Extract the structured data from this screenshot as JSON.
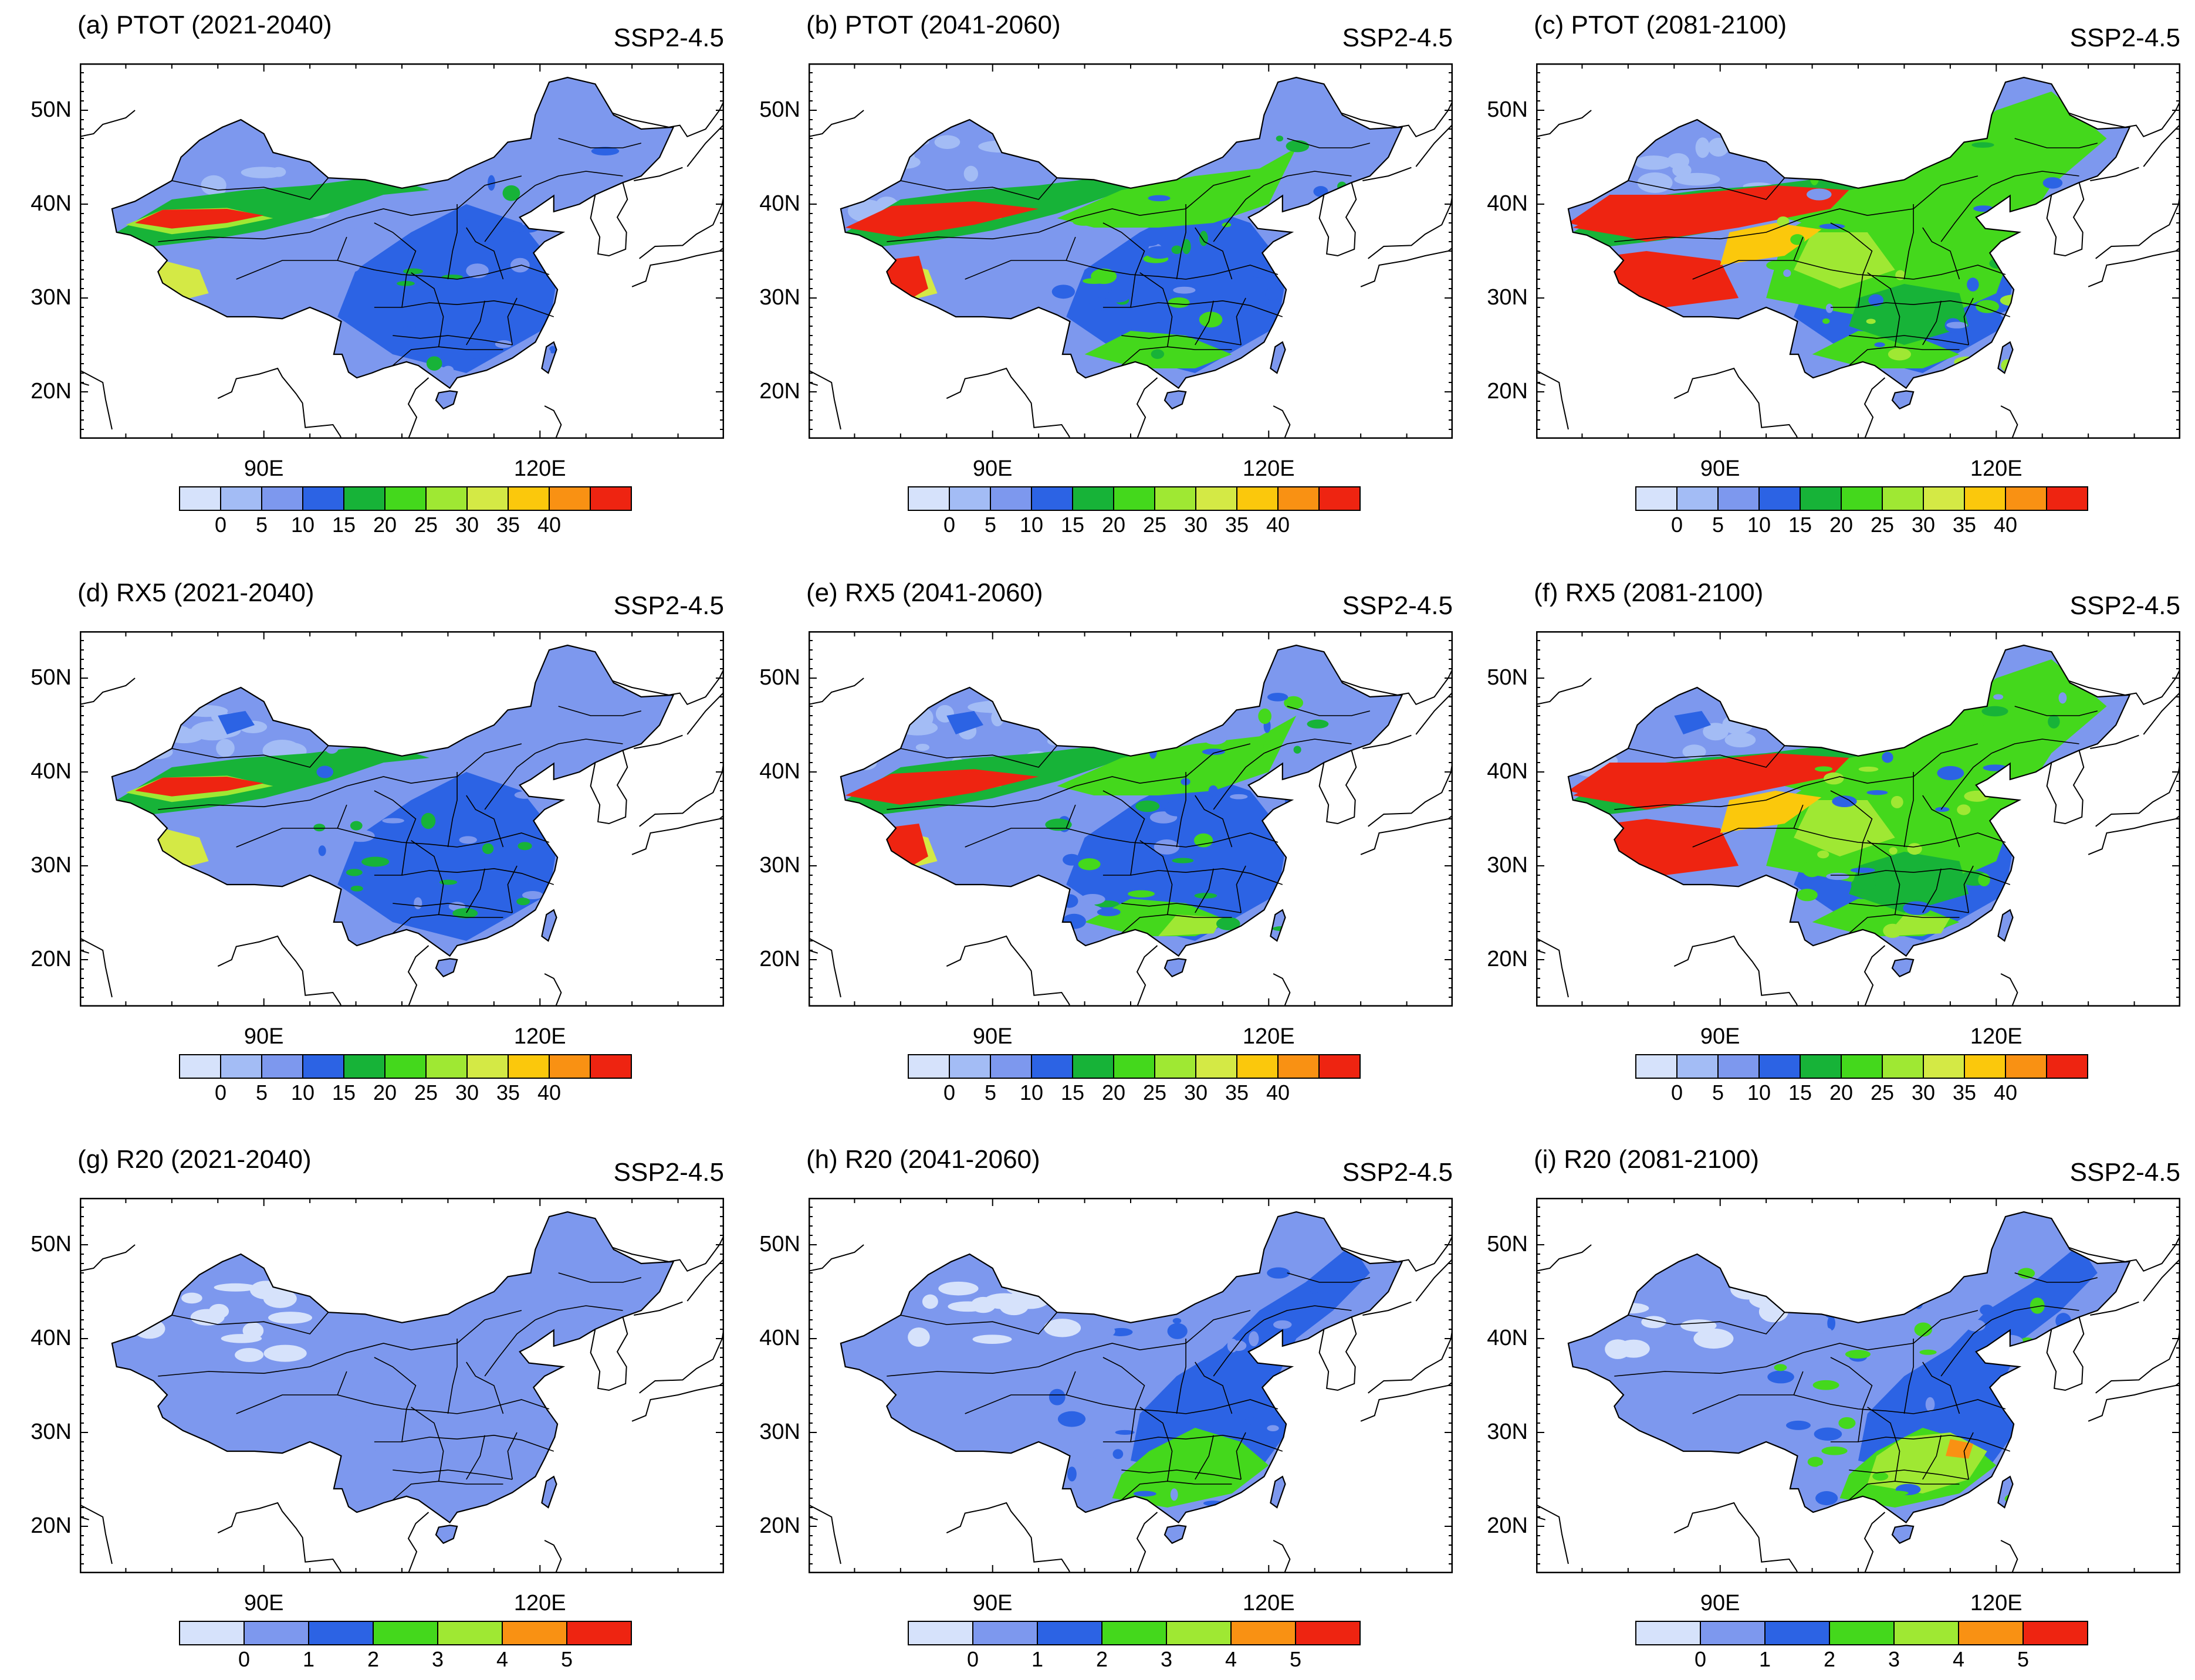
{
  "figure": {
    "panels": [
      {
        "id": "a",
        "title": "(a) PTOT (2021-2040)",
        "scenario": "SSP2-4.5",
        "variable": "PTOT",
        "period": "2021-2040",
        "colorbar": "ptot",
        "level": 1
      },
      {
        "id": "b",
        "title": "(b) PTOT (2041-2060)",
        "scenario": "SSP2-4.5",
        "variable": "PTOT",
        "period": "2041-2060",
        "colorbar": "ptot",
        "level": 2
      },
      {
        "id": "c",
        "title": "(c) PTOT (2081-2100)",
        "scenario": "SSP2-4.5",
        "variable": "PTOT",
        "period": "2081-2100",
        "colorbar": "ptot",
        "level": 3
      },
      {
        "id": "d",
        "title": "(d) RX5 (2021-2040)",
        "scenario": "SSP2-4.5",
        "variable": "RX5",
        "period": "2021-2040",
        "colorbar": "rx5",
        "level": 1
      },
      {
        "id": "e",
        "title": "(e) RX5 (2041-2060)",
        "scenario": "SSP2-4.5",
        "variable": "RX5",
        "period": "2041-2060",
        "colorbar": "rx5",
        "level": 2
      },
      {
        "id": "f",
        "title": "(f) RX5 (2081-2100)",
        "scenario": "SSP2-4.5",
        "variable": "RX5",
        "period": "2081-2100",
        "colorbar": "rx5",
        "level": 3
      },
      {
        "id": "g",
        "title": "(g) R20 (2021-2040)",
        "scenario": "SSP2-4.5",
        "variable": "R20",
        "period": "2021-2040",
        "colorbar": "r20",
        "level": 1
      },
      {
        "id": "h",
        "title": "(h) R20 (2041-2060)",
        "scenario": "SSP2-4.5",
        "variable": "R20",
        "period": "2041-2060",
        "colorbar": "r20",
        "level": 2
      },
      {
        "id": "i",
        "title": "(i) R20 (2081-2100)",
        "scenario": "SSP2-4.5",
        "variable": "R20",
        "period": "2081-2100",
        "colorbar": "r20",
        "level": 3
      }
    ],
    "lat_labels": [
      "50N",
      "40N",
      "30N",
      "20N"
    ],
    "lat_values": [
      50,
      40,
      30,
      20
    ],
    "lon_labels": [
      "90E",
      "120E"
    ],
    "lon_values": [
      90,
      120
    ],
    "map_extent": {
      "lon": [
        70,
        140
      ],
      "lat": [
        15,
        55
      ]
    },
    "colorbars": {
      "ptot": {
        "labels": [
          "0",
          "5",
          "10",
          "15",
          "20",
          "25",
          "30",
          "35",
          "40"
        ],
        "colors": [
          "#d6e2fb",
          "#a3bcf5",
          "#7d98ee",
          "#2c63e4",
          "#17b338",
          "#44d81c",
          "#9fe833",
          "#d4e945",
          "#fbc80c",
          "#f99113",
          "#ee2411"
        ]
      },
      "rx5": {
        "labels": [
          "0",
          "5",
          "10",
          "15",
          "20",
          "25",
          "30",
          "35",
          "40"
        ],
        "colors": [
          "#d6e2fb",
          "#a3bcf5",
          "#7d98ee",
          "#2c63e4",
          "#17b338",
          "#44d81c",
          "#9fe833",
          "#d4e945",
          "#fbc80c",
          "#f99113",
          "#ee2411"
        ]
      },
      "r20": {
        "labels": [
          "0",
          "1",
          "2",
          "3",
          "4",
          "5"
        ],
        "colors": [
          "#d6e2fb",
          "#7d98ee",
          "#2c63e4",
          "#44d81c",
          "#9fe833",
          "#f99113",
          "#ee2411"
        ]
      }
    },
    "map_colors": {
      "ocean": "#ffffff",
      "border": "#000000"
    }
  }
}
